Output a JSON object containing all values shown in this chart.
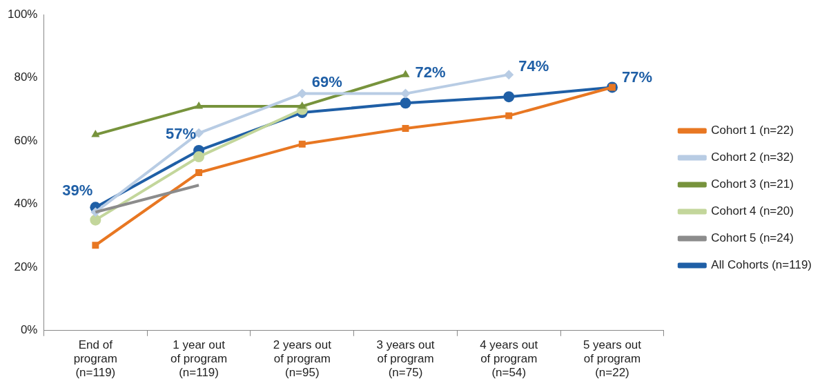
{
  "chart_data": {
    "type": "line",
    "categories": [
      "End of program (n=119)",
      "1 year out of program (n=119)",
      "2 years out of program (n=95)",
      "3 years out of program (n=75)",
      "4 years out of program (n=54)",
      "5 years out of program (n=22)"
    ],
    "series": [
      {
        "name": "Cohort 1 (n=22)",
        "color": "#e87722",
        "marker": "square",
        "values": [
          27,
          50,
          59,
          64,
          68,
          77
        ]
      },
      {
        "name": "Cohort 2 (n=32)",
        "color": "#b8cce4",
        "marker": "diamond",
        "values": [
          37.5,
          62.5,
          75,
          75,
          81,
          null
        ]
      },
      {
        "name": "Cohort 3 (n=21)",
        "color": "#77933c",
        "marker": "triangle",
        "values": [
          62,
          71,
          71,
          81,
          null,
          null
        ]
      },
      {
        "name": "Cohort 4 (n=20)",
        "color": "#c3d69b",
        "marker": "circle",
        "values": [
          35,
          55,
          70,
          null,
          null,
          null
        ]
      },
      {
        "name": "Cohort 5 (n=24)",
        "color": "#8c8c8c",
        "marker": "none",
        "values": [
          37.5,
          46,
          null,
          null,
          null,
          null
        ]
      },
      {
        "name": "All Cohorts (n=119)",
        "color": "#1f5fa6",
        "marker": "circle",
        "values": [
          39,
          57,
          69,
          72,
          74,
          77
        ],
        "value_labels": [
          "39%",
          "57%",
          "69%",
          "72%",
          "74%",
          "77%"
        ]
      }
    ],
    "ylim": [
      0,
      100
    ],
    "yticks": [
      {
        "value": 0,
        "label": "0%"
      },
      {
        "value": 20,
        "label": "20%"
      },
      {
        "value": 40,
        "label": "40%"
      },
      {
        "value": 60,
        "label": "60%"
      },
      {
        "value": 80,
        "label": "80%"
      },
      {
        "value": 100,
        "label": "100%"
      }
    ],
    "legend": "right"
  }
}
